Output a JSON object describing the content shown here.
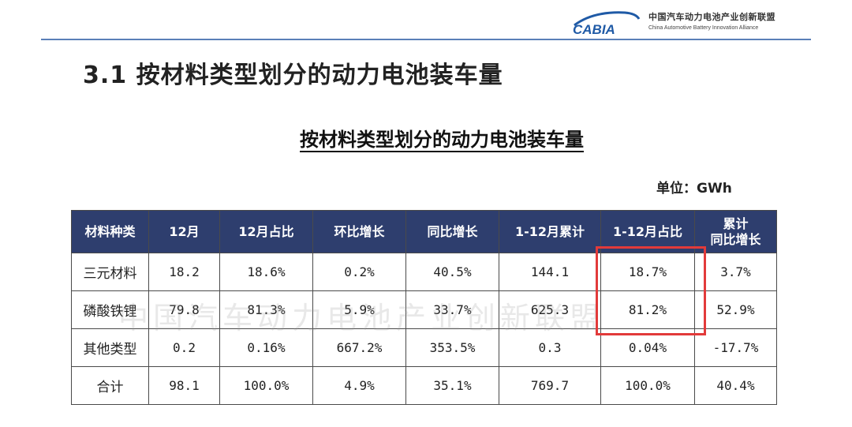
{
  "header": {
    "logo_name": "CABIA",
    "logo_cn": "中国汽车动力电池产业创新联盟",
    "logo_en": "China Automotive Battery Innovation Alliance",
    "brand_color": "#5a7fb8"
  },
  "heading": "3.1 按材料类型划分的动力电池装车量",
  "table_title": "按材料类型划分的动力电池装车量",
  "unit": "单位：GWh",
  "watermark": "中国汽车动力电池产业创新联盟",
  "table": {
    "header_color": "#2e3e6e",
    "columns": [
      "材料种类",
      "12月",
      "12月占比",
      "环比增长",
      "同比增长",
      "1-12月累计",
      "1-12月占比",
      "累计\n同比增长"
    ],
    "rows": [
      [
        "三元材料",
        "18.2",
        "18.6%",
        "0.2%",
        "40.5%",
        "144.1",
        "18.7%",
        "3.7%"
      ],
      [
        "磷酸铁锂",
        "79.8",
        "81.3%",
        "5.9%",
        "33.7%",
        "625.3",
        "81.2%",
        "52.9%"
      ],
      [
        "其他类型",
        "0.2",
        "0.16%",
        "667.2%",
        "353.5%",
        "0.3",
        "0.04%",
        "-17.7%"
      ],
      [
        "合计",
        "98.1",
        "100.0%",
        "4.9%",
        "35.1%",
        "769.7",
        "100.0%",
        "40.4%"
      ]
    ]
  },
  "highlight_color": "#e23a3a"
}
